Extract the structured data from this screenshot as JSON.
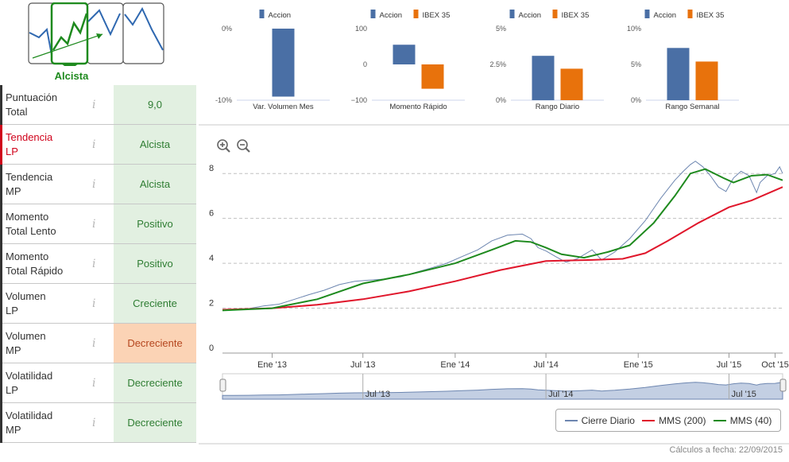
{
  "trend": {
    "label": "Alcista",
    "color": "#1e8a1e"
  },
  "rows": [
    {
      "label": "Puntuación\nTotal",
      "value": "9,0",
      "status": "good",
      "label_color": "normal"
    },
    {
      "label": "Tendencia\nLP",
      "value": "Alcista",
      "status": "good",
      "label_color": "red"
    },
    {
      "label": "Tendencia\nMP",
      "value": "Alcista",
      "status": "good",
      "label_color": "normal"
    },
    {
      "label": "Momento\nTotal Lento",
      "value": "Positivo",
      "status": "good",
      "label_color": "normal"
    },
    {
      "label": "Momento\nTotal Rápido",
      "value": "Positivo",
      "status": "good",
      "label_color": "normal"
    },
    {
      "label": "Volumen\nLP",
      "value": "Creciente",
      "status": "good",
      "label_color": "normal"
    },
    {
      "label": "Volumen\nMP",
      "value": "Decreciente",
      "status": "bad",
      "label_color": "normal"
    },
    {
      "label": "Volatilidad\nLP",
      "value": "Decreciente",
      "status": "good",
      "label_color": "normal"
    },
    {
      "label": "Volatilidad\nMP",
      "value": "Decreciente",
      "status": "good",
      "label_color": "normal"
    }
  ],
  "info_glyph": "i",
  "colors": {
    "accion": "#4a6fa5",
    "ibex": "#e8720c",
    "cierre": "#6d86b0",
    "mms200": "#e0162b",
    "mms40": "#1e8a1e",
    "good_bg": "#e2f0e1",
    "bad_bg": "#fbd3b5"
  },
  "chart_data": [
    {
      "type": "bar",
      "title": "Var. Volumen Mes",
      "legend": [
        "Accion"
      ],
      "ticks": [
        "0%",
        "-10%"
      ],
      "ylim": [
        -10,
        0
      ],
      "series": [
        {
          "name": "Accion",
          "values": [
            -9.5
          ]
        }
      ]
    },
    {
      "type": "bar",
      "title": "Momento Rápido",
      "legend": [
        "Accion",
        "IBEX 35"
      ],
      "ticks": [
        "100",
        "0",
        "−100"
      ],
      "ylim": [
        -100,
        100
      ],
      "series": [
        {
          "name": "Accion",
          "values": [
            55
          ]
        },
        {
          "name": "IBEX 35",
          "values": [
            -68
          ]
        }
      ]
    },
    {
      "type": "bar",
      "title": "Rango Diario",
      "legend": [
        "Accion",
        "IBEX 35"
      ],
      "ticks": [
        "5%",
        "2.5%",
        "0%"
      ],
      "ylim": [
        0,
        5
      ],
      "series": [
        {
          "name": "Accion",
          "values": [
            3.1
          ]
        },
        {
          "name": "IBEX 35",
          "values": [
            2.2
          ]
        }
      ]
    },
    {
      "type": "bar",
      "title": "Rango Semanal",
      "legend": [
        "Accion",
        "IBEX 35"
      ],
      "ticks": [
        "10%",
        "5%",
        "0%"
      ],
      "ylim": [
        0,
        10
      ],
      "series": [
        {
          "name": "Accion",
          "values": [
            7.3
          ]
        },
        {
          "name": "IBEX 35",
          "values": [
            5.4
          ]
        }
      ]
    },
    {
      "type": "line",
      "xlim": [
        "2012-09-24",
        "2015-10-16"
      ],
      "ylim": [
        0,
        9
      ],
      "y_ticks": [
        "0",
        "2",
        "4",
        "6",
        "8"
      ],
      "x_ticks": [
        {
          "label": "Ene '13",
          "date": "2013-01-01"
        },
        {
          "label": "Jul '13",
          "date": "2013-07-01"
        },
        {
          "label": "Ene '14",
          "date": "2014-01-01"
        },
        {
          "label": "Jul '14",
          "date": "2014-07-01"
        },
        {
          "label": "Ene '15",
          "date": "2015-01-01"
        },
        {
          "label": "Jul '15",
          "date": "2015-07-01"
        },
        {
          "label": "Oct '15",
          "date": "2015-10-01"
        }
      ],
      "navigator_ticks": [
        {
          "label": "Jul '13",
          "date": "2013-07-01"
        },
        {
          "label": "Jul '14",
          "date": "2014-07-01"
        },
        {
          "label": "Jul '15",
          "date": "2015-07-01"
        }
      ],
      "series": [
        {
          "name": "Cierre Diario",
          "points": [
            [
              "2012-09-24",
              1.9
            ],
            [
              "2012-10-15",
              1.92
            ],
            [
              "2012-11-15",
              1.98
            ],
            [
              "2012-12-15",
              2.1
            ],
            [
              "2013-01-15",
              2.18
            ],
            [
              "2013-02-15",
              2.4
            ],
            [
              "2013-03-15",
              2.6
            ],
            [
              "2013-04-15",
              2.8
            ],
            [
              "2013-05-15",
              3.05
            ],
            [
              "2013-06-15",
              3.2
            ],
            [
              "2013-07-15",
              3.25
            ],
            [
              "2013-08-15",
              3.3
            ],
            [
              "2013-09-15",
              3.4
            ],
            [
              "2013-10-15",
              3.6
            ],
            [
              "2013-11-15",
              3.8
            ],
            [
              "2013-12-15",
              4.0
            ],
            [
              "2014-01-15",
              4.3
            ],
            [
              "2014-02-15",
              4.6
            ],
            [
              "2014-03-15",
              5.0
            ],
            [
              "2014-04-15",
              5.25
            ],
            [
              "2014-05-15",
              5.3
            ],
            [
              "2014-06-01",
              5.1
            ],
            [
              "2014-06-15",
              4.7
            ],
            [
              "2014-07-01",
              4.55
            ],
            [
              "2014-07-20",
              4.3
            ],
            [
              "2014-08-10",
              4.05
            ],
            [
              "2014-09-01",
              4.2
            ],
            [
              "2014-10-01",
              4.6
            ],
            [
              "2014-10-20",
              4.15
            ],
            [
              "2014-11-15",
              4.5
            ],
            [
              "2014-12-15",
              5.1
            ],
            [
              "2015-01-15",
              5.9
            ],
            [
              "2015-02-15",
              6.9
            ],
            [
              "2015-03-15",
              7.7
            ],
            [
              "2015-04-01",
              8.1
            ],
            [
              "2015-04-15",
              8.4
            ],
            [
              "2015-04-25",
              8.55
            ],
            [
              "2015-05-10",
              8.3
            ],
            [
              "2015-05-25",
              7.9
            ],
            [
              "2015-06-10",
              7.4
            ],
            [
              "2015-06-25",
              7.2
            ],
            [
              "2015-07-10",
              7.8
            ],
            [
              "2015-07-25",
              8.1
            ],
            [
              "2015-08-10",
              7.9
            ],
            [
              "2015-08-25",
              7.15
            ],
            [
              "2015-09-01",
              7.6
            ],
            [
              "2015-09-15",
              7.9
            ],
            [
              "2015-10-01",
              8.0
            ],
            [
              "2015-10-10",
              8.3
            ],
            [
              "2015-10-16",
              8.0
            ]
          ]
        },
        {
          "name": "MMS (200)",
          "points": [
            [
              "2012-09-24",
              1.93
            ],
            [
              "2013-01-01",
              2.0
            ],
            [
              "2013-04-01",
              2.15
            ],
            [
              "2013-07-01",
              2.4
            ],
            [
              "2013-10-01",
              2.75
            ],
            [
              "2014-01-01",
              3.2
            ],
            [
              "2014-04-01",
              3.7
            ],
            [
              "2014-07-01",
              4.1
            ],
            [
              "2014-10-01",
              4.15
            ],
            [
              "2014-12-01",
              4.2
            ],
            [
              "2015-01-15",
              4.45
            ],
            [
              "2015-03-01",
              5.0
            ],
            [
              "2015-05-01",
              5.8
            ],
            [
              "2015-07-01",
              6.5
            ],
            [
              "2015-08-15",
              6.8
            ],
            [
              "2015-10-16",
              7.4
            ]
          ]
        },
        {
          "name": "MMS (40)",
          "points": [
            [
              "2012-09-24",
              1.9
            ],
            [
              "2013-01-01",
              2.0
            ],
            [
              "2013-04-01",
              2.4
            ],
            [
              "2013-07-01",
              3.1
            ],
            [
              "2013-10-01",
              3.5
            ],
            [
              "2014-01-01",
              4.0
            ],
            [
              "2014-03-15",
              4.6
            ],
            [
              "2014-05-01",
              5.0
            ],
            [
              "2014-06-01",
              4.95
            ],
            [
              "2014-07-01",
              4.7
            ],
            [
              "2014-08-01",
              4.4
            ],
            [
              "2014-09-15",
              4.25
            ],
            [
              "2014-11-01",
              4.5
            ],
            [
              "2014-12-15",
              4.8
            ],
            [
              "2015-02-01",
              5.8
            ],
            [
              "2015-03-15",
              7.0
            ],
            [
              "2015-04-15",
              8.0
            ],
            [
              "2015-05-15",
              8.2
            ],
            [
              "2015-06-20",
              7.8
            ],
            [
              "2015-07-10",
              7.6
            ],
            [
              "2015-08-15",
              7.9
            ],
            [
              "2015-09-15",
              7.95
            ],
            [
              "2015-10-16",
              7.7
            ]
          ]
        }
      ]
    }
  ],
  "zoom": {
    "in_icon": "zoom-in-icon",
    "out_icon": "zoom-out-icon"
  },
  "footer": "Cálculos a fecha: 22/09/2015"
}
